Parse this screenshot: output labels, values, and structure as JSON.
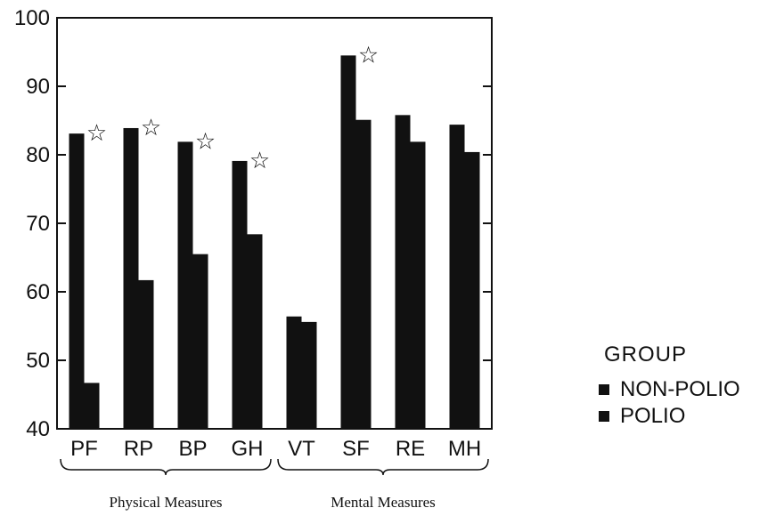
{
  "chart_data": {
    "type": "bar",
    "categories": [
      "PF",
      "RP",
      "BP",
      "GH",
      "VT",
      "SF",
      "RE",
      "MH"
    ],
    "series": [
      {
        "name": "NON-POLIO",
        "values": [
          83.1,
          83.9,
          81.9,
          79.1,
          56.4,
          94.5,
          85.8,
          84.4
        ]
      },
      {
        "name": "POLIO",
        "values": [
          46.7,
          61.7,
          65.5,
          68.4,
          55.6,
          85.1,
          81.9,
          80.4
        ]
      }
    ],
    "ylim": [
      40,
      100
    ],
    "yticks": [
      40,
      50,
      60,
      70,
      80,
      90,
      100
    ],
    "significant_categories": [
      "PF",
      "RP",
      "BP",
      "GH",
      "SF"
    ],
    "significance_marker": "☆",
    "groups": [
      {
        "label": "Physical Measures",
        "categories": [
          "PF",
          "RP",
          "BP",
          "GH"
        ]
      },
      {
        "label": "Mental Measures",
        "categories": [
          "VT",
          "SF",
          "RE",
          "MH"
        ]
      }
    ],
    "legend": {
      "title": "GROUP",
      "placement": "right"
    },
    "grid": false,
    "title": "",
    "xlabel": "",
    "ylabel": "",
    "colors": {
      "bars": "#111111",
      "axes": "#111111",
      "background": "#ffffff"
    }
  }
}
